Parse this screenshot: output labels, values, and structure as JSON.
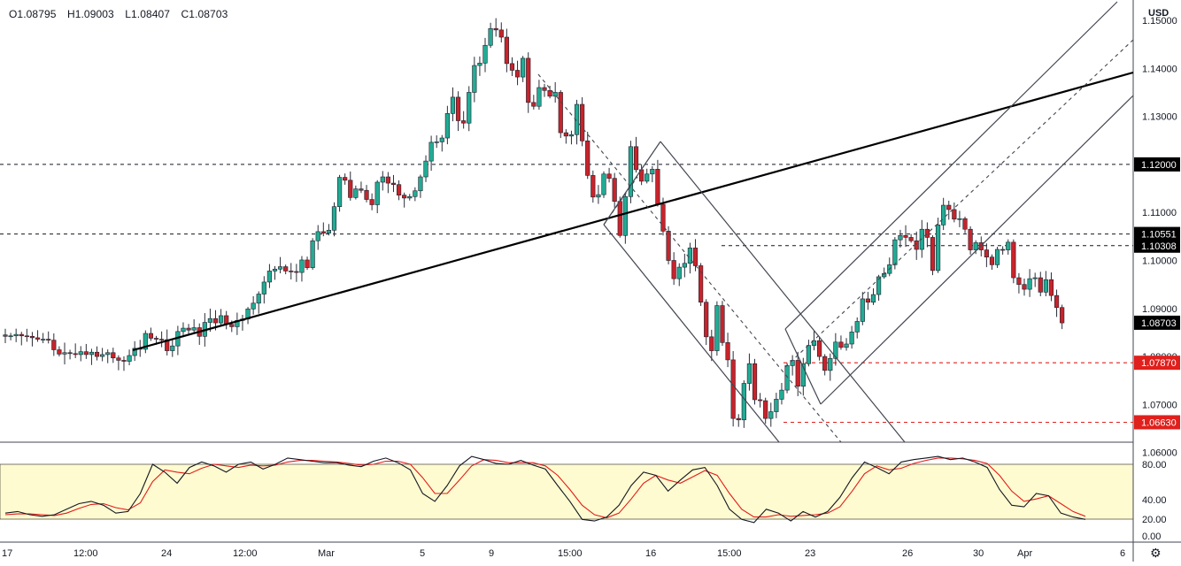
{
  "ohlc": {
    "open": "O1.08795",
    "high": "H1.09003",
    "low": "L1.08407",
    "close": "C1.08703"
  },
  "currency_label": "USD",
  "colors": {
    "up": "#26a69a",
    "down": "#ef5350",
    "candle_up": "#22ab94",
    "candle_down": "#c8232b",
    "tag_dark": "#000000",
    "tag_red": "#e0201c",
    "stoch_k": "#131722",
    "stoch_d": "#e31b1b",
    "stoch_band": "#fffbd0"
  },
  "chart_data": [
    {
      "type": "candlestick",
      "symbol_quote": "USD",
      "ylim": [
        1.058,
        1.152
      ],
      "y_ticks": [
        "1.15000",
        "1.14000",
        "1.13000",
        "1.12000",
        "1.11000",
        "1.10000",
        "1.09000",
        "1.08000",
        "1.07000",
        "1.06000"
      ],
      "x_ticks": [
        "17",
        "12:00",
        "24",
        "12:00",
        "Mar",
        "5",
        "9",
        "15:00",
        "16",
        "15:00",
        "23",
        "26",
        "30",
        "Apr",
        "6"
      ],
      "price_tags": [
        {
          "label": "1.12000",
          "value": 1.12,
          "style": "dark"
        },
        {
          "label": "1.10551",
          "value": 1.10551,
          "style": "dark"
        },
        {
          "label": "1.10308",
          "value": 1.10308,
          "style": "dark"
        },
        {
          "label": "1.08703",
          "value": 1.08703,
          "style": "dark"
        },
        {
          "label": "1.07870",
          "value": 1.0787,
          "style": "red"
        },
        {
          "label": "1.06630",
          "value": 1.0663,
          "style": "red"
        }
      ],
      "horizontal_levels": [
        {
          "value": 1.12,
          "style": "black-dashed"
        },
        {
          "value": 1.10551,
          "style": "black-dashed"
        },
        {
          "value": 1.10308,
          "style": "black-dashed"
        },
        {
          "value": 1.0787,
          "style": "red-dashed"
        },
        {
          "value": 1.0663,
          "style": "red-dashed"
        }
      ],
      "closes": [
        1.0842,
        1.0843,
        1.0846,
        1.0843,
        1.0842,
        1.0839,
        1.0836,
        1.0836,
        1.0834,
        1.0814,
        1.0805,
        1.0808,
        1.0806,
        1.0804,
        1.081,
        1.0804,
        1.0809,
        1.08,
        1.0804,
        1.0808,
        1.0797,
        1.0792,
        1.079,
        1.0802,
        1.0817,
        1.0815,
        1.0848,
        1.0838,
        1.0836,
        1.0835,
        1.0812,
        1.0822,
        1.0852,
        1.0859,
        1.0855,
        1.086,
        1.0842,
        1.0871,
        1.0879,
        1.087,
        1.0885,
        1.0867,
        1.0862,
        1.0875,
        1.0878,
        1.0899,
        1.0911,
        1.093,
        1.0955,
        1.0978,
        1.0982,
        1.0987,
        1.0978,
        1.0977,
        1.0975,
        1.1001,
        1.0985,
        1.1041,
        1.106,
        1.1057,
        1.1063,
        1.1112,
        1.1173,
        1.1167,
        1.1131,
        1.1149,
        1.1146,
        1.1127,
        1.1116,
        1.1163,
        1.1174,
        1.1161,
        1.1158,
        1.1136,
        1.113,
        1.1133,
        1.1145,
        1.1174,
        1.1207,
        1.1246,
        1.1247,
        1.1255,
        1.1306,
        1.134,
        1.1291,
        1.1286,
        1.135,
        1.1406,
        1.1411,
        1.1448,
        1.1483,
        1.148,
        1.1465,
        1.141,
        1.1396,
        1.1382,
        1.1421,
        1.1329,
        1.1321,
        1.136,
        1.1354,
        1.1342,
        1.135,
        1.1266,
        1.1259,
        1.1262,
        1.1325,
        1.1249,
        1.1177,
        1.1132,
        1.1137,
        1.118,
        1.1171,
        1.1123,
        1.1052,
        1.1133,
        1.1237,
        1.1189,
        1.1165,
        1.118,
        1.119,
        1.1117,
        1.1061,
        1.1,
        1.0962,
        1.0986,
        1.0994,
        1.1026,
        1.0989,
        1.0913,
        1.0841,
        1.0812,
        1.0906,
        1.0829,
        1.0793,
        1.0671,
        1.0668,
        1.0744,
        1.0785,
        1.071,
        1.0708,
        1.0671,
        1.0685,
        1.0711,
        1.073,
        1.0781,
        1.0792,
        1.0738,
        1.0785,
        1.0823,
        1.0833,
        1.08,
        1.0771,
        1.0796,
        1.083,
        1.0819,
        1.0826,
        1.0851,
        1.0873,
        1.092,
        1.0913,
        1.0929,
        1.0966,
        1.0973,
        1.0991,
        1.1043,
        1.1052,
        1.1048,
        1.1041,
        1.1023,
        1.1065,
        1.1048,
        1.0979,
        1.1074,
        1.1115,
        1.1106,
        1.1086,
        1.1087,
        1.1065,
        1.1022,
        1.1037,
        1.1022,
        1.1007,
        1.0991,
        1.1023,
        1.1022,
        1.1038,
        1.0964,
        1.095,
        1.094,
        1.0962,
        1.0964,
        1.0934,
        1.096,
        1.0927,
        1.0902,
        1.087
      ]
    },
    {
      "type": "line",
      "indicator": "stochastic",
      "ylim": [
        0,
        100
      ],
      "y_ticks": [
        "80.00",
        "40.00",
        "20.00",
        "0.00"
      ],
      "band": [
        20,
        80
      ],
      "series": [
        {
          "key": "k",
          "values": [
            20,
            22,
            18,
            16,
            18,
            25,
            32,
            35,
            30,
            20,
            22,
            45,
            82,
            72,
            58,
            78,
            85,
            80,
            72,
            82,
            85,
            76,
            82,
            90,
            88,
            86,
            84,
            84,
            81,
            79,
            86,
            90,
            84,
            75,
            45,
            35,
            55,
            80,
            92,
            88,
            83,
            82,
            87,
            81,
            76,
            55,
            35,
            12,
            10,
            15,
            30,
            55,
            72,
            68,
            48,
            62,
            75,
            78,
            55,
            25,
            12,
            8,
            25,
            20,
            10,
            22,
            15,
            22,
            40,
            65,
            85,
            78,
            70,
            85,
            88,
            90,
            92,
            88,
            90,
            85,
            78,
            50,
            30,
            28,
            45,
            42,
            20,
            15,
            12
          ]
        },
        {
          "key": "d",
          "values": [
            18,
            19,
            19,
            18,
            17,
            20,
            26,
            31,
            32,
            27,
            24,
            33,
            60,
            75,
            72,
            70,
            77,
            82,
            80,
            78,
            81,
            80,
            81,
            85,
            87,
            87,
            86,
            85,
            83,
            81,
            82,
            86,
            86,
            82,
            65,
            45,
            45,
            62,
            80,
            88,
            87,
            84,
            84,
            84,
            80,
            68,
            50,
            30,
            18,
            14,
            20,
            38,
            58,
            68,
            62,
            58,
            66,
            74,
            68,
            45,
            25,
            15,
            15,
            18,
            16,
            17,
            18,
            20,
            28,
            48,
            70,
            80,
            75,
            77,
            83,
            87,
            90,
            90,
            89,
            87,
            83,
            68,
            48,
            35,
            38,
            42,
            32,
            22,
            16
          ]
        }
      ]
    }
  ]
}
